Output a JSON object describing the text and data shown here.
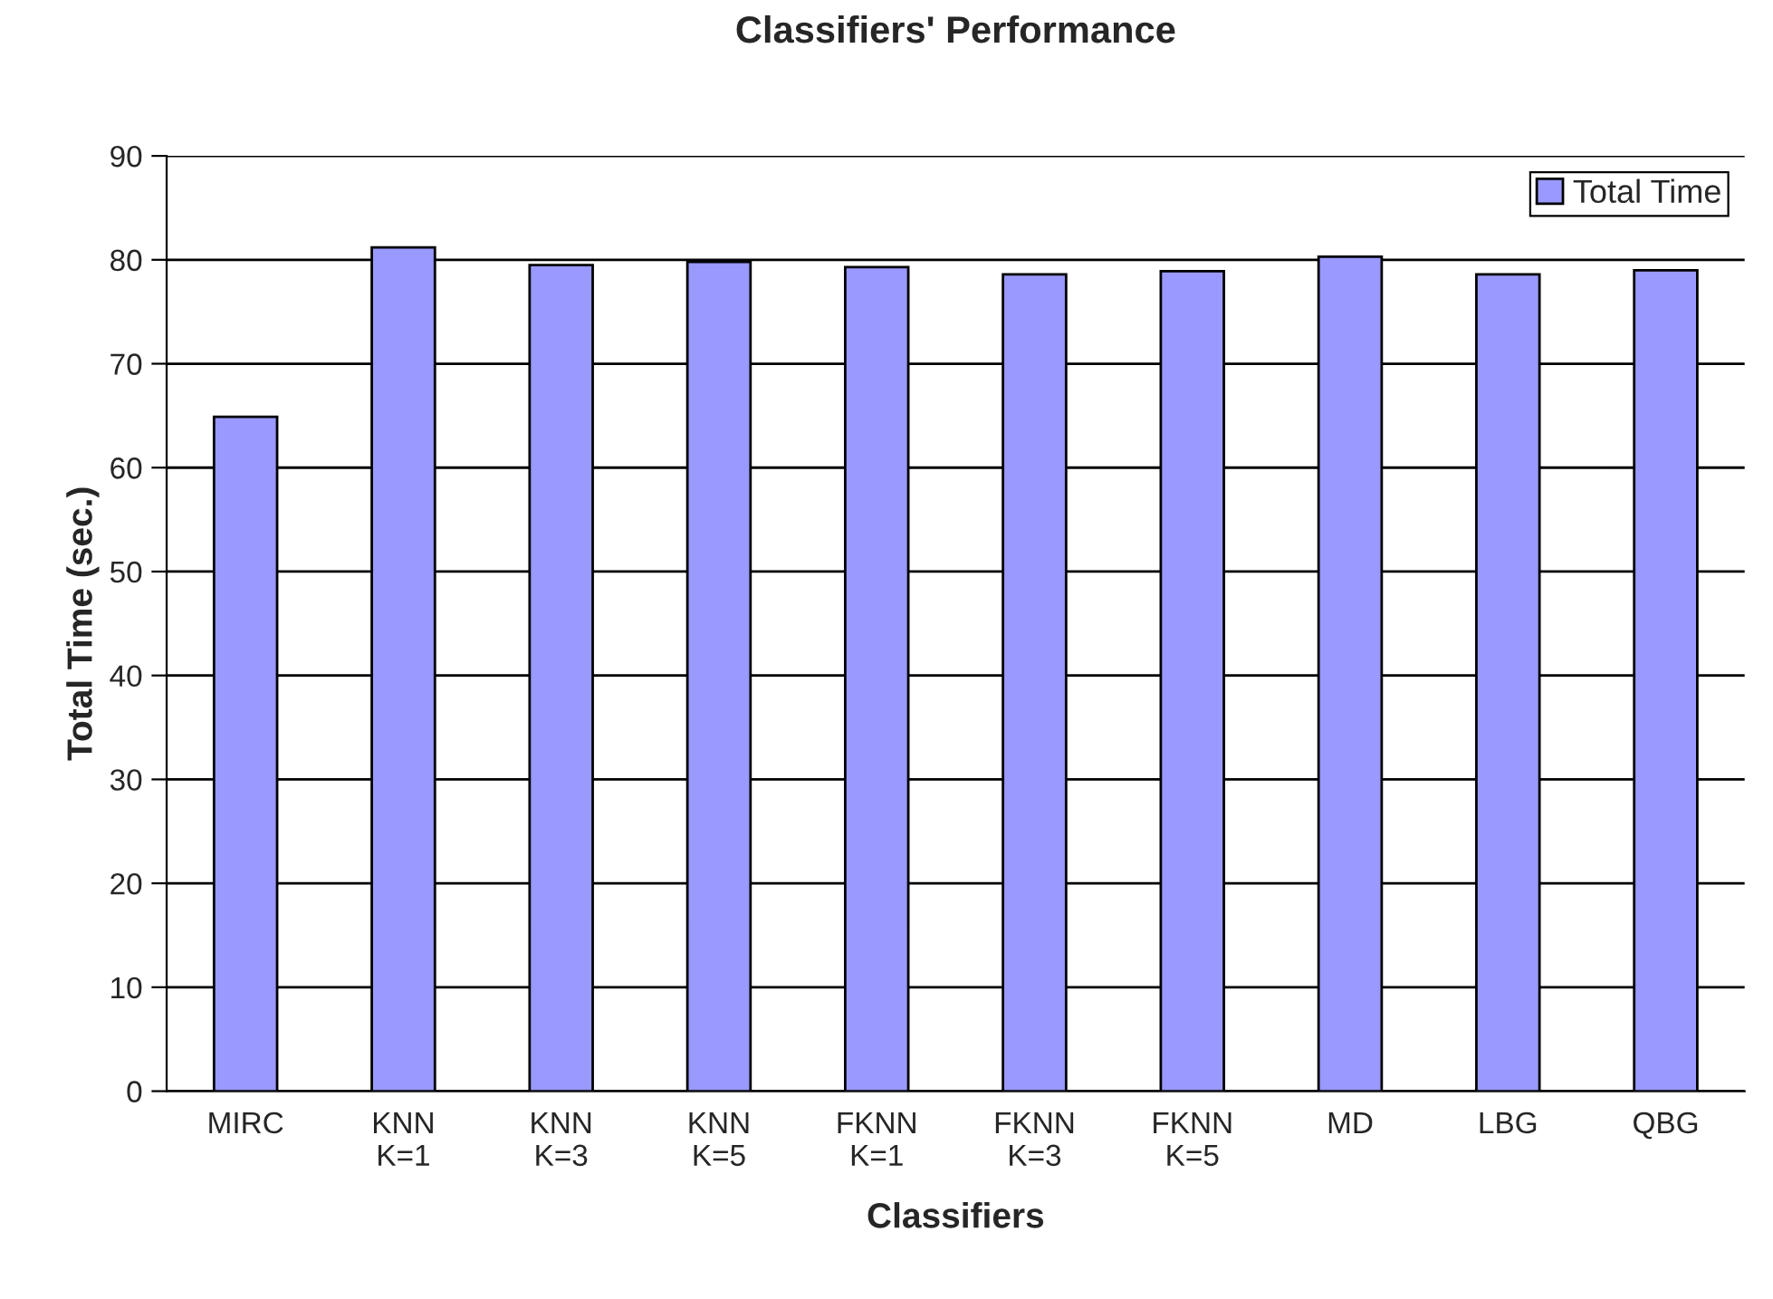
{
  "chart_data": {
    "type": "bar",
    "title": "Classifiers' Performance",
    "xlabel": "Classifiers",
    "ylabel": "Total Time (sec.)",
    "categories": [
      "MIRC",
      "KNN\nK=1",
      "KNN\nK=3",
      "KNN\nK=5",
      "FKNN\nK=1",
      "FKNN\nK=3",
      "FKNN\nK=5",
      "MD",
      "LBG",
      "QBG"
    ],
    "series": [
      {
        "name": "Total Time",
        "color": "#9999ff",
        "values": [
          64.9,
          81.2,
          79.5,
          79.8,
          79.3,
          78.6,
          78.9,
          80.3,
          78.6,
          79.0
        ]
      }
    ],
    "ylim": [
      0,
      90
    ],
    "yticks": [
      0,
      10,
      20,
      30,
      40,
      50,
      60,
      70,
      80,
      90
    ],
    "grid": "y",
    "legend": "top right"
  }
}
